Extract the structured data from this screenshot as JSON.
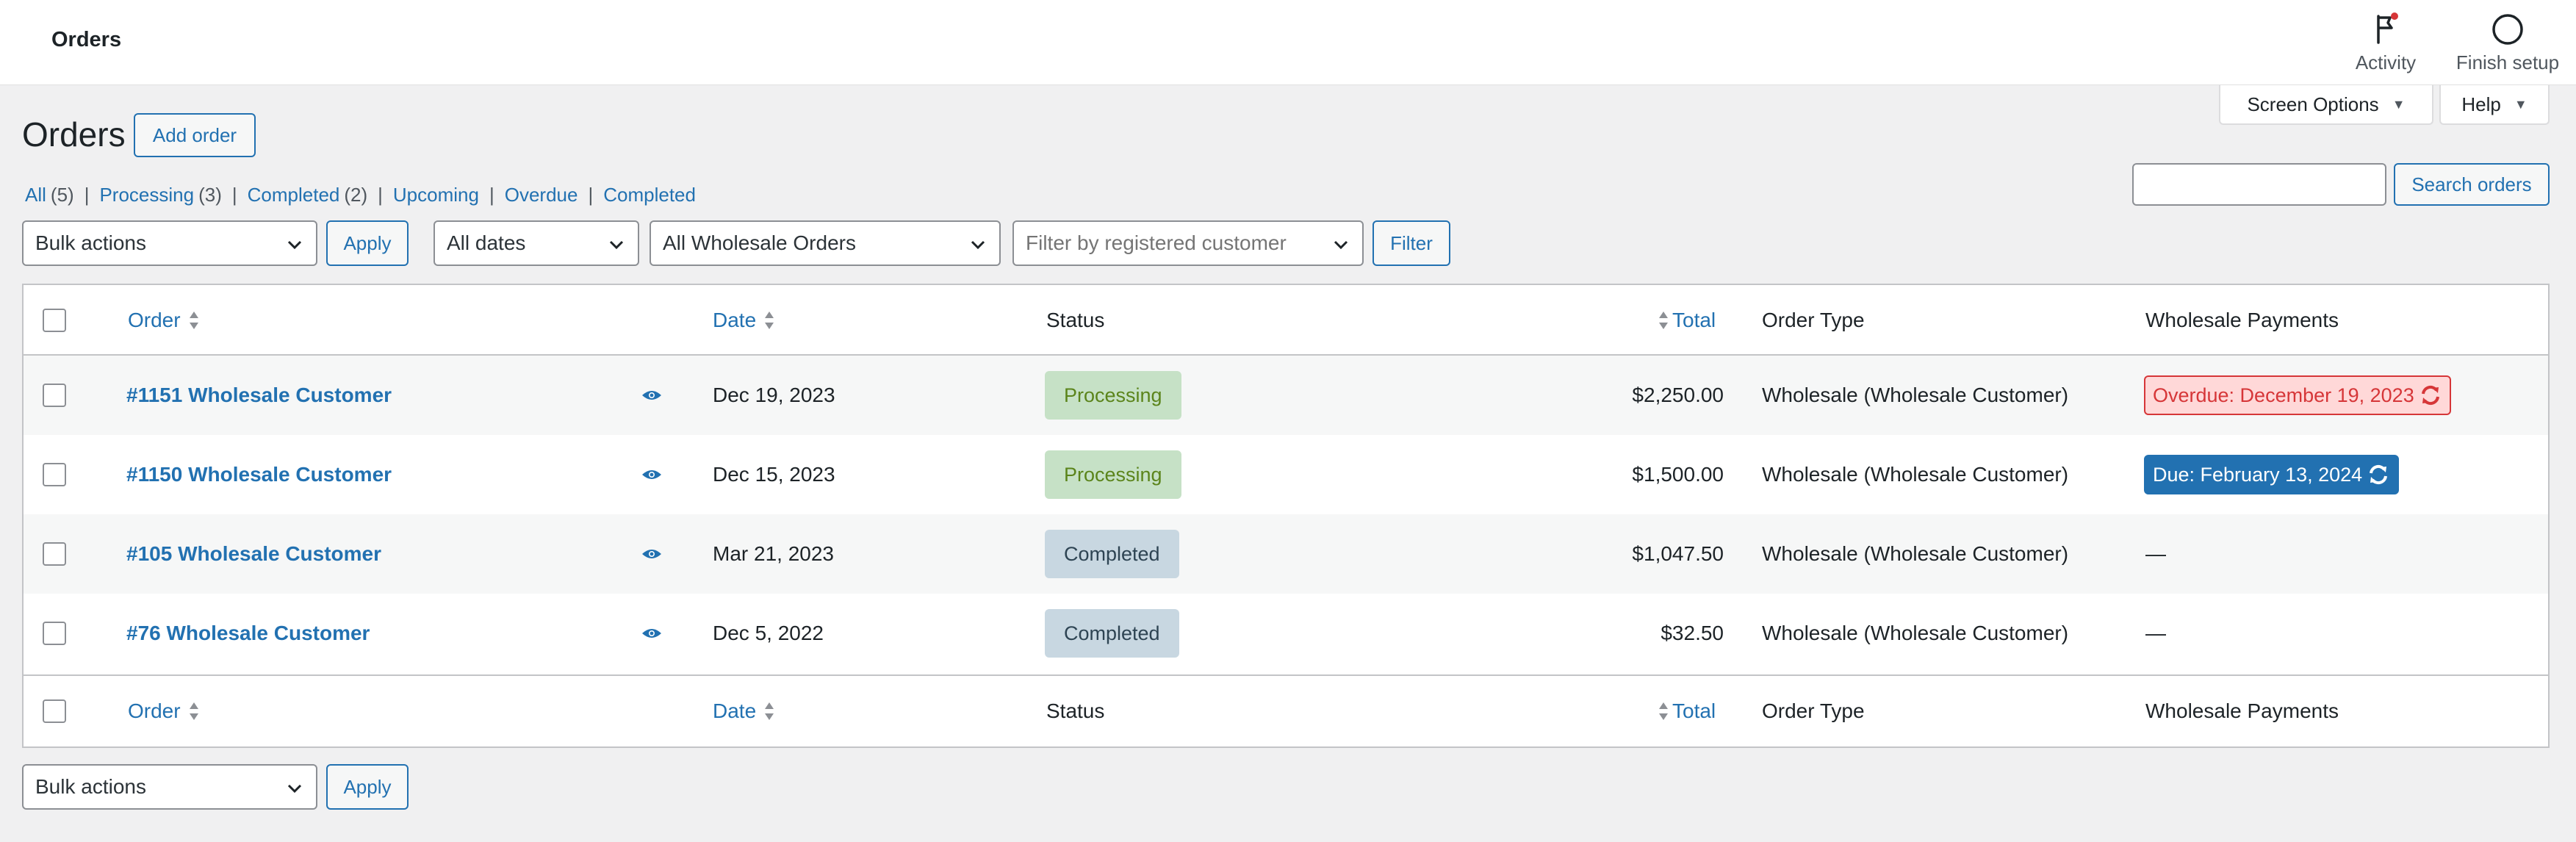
{
  "topbar": {
    "title": "Orders",
    "activity_label": "Activity",
    "finish_setup_label": "Finish setup"
  },
  "screen_meta": {
    "screen_options": "Screen Options",
    "help": "Help"
  },
  "heading": {
    "title": "Orders",
    "add_order": "Add order"
  },
  "views": [
    {
      "label": "All",
      "count": "(5)"
    },
    {
      "label": "Processing",
      "count": "(3)"
    },
    {
      "label": "Completed",
      "count": "(2)"
    },
    {
      "label": "Upcoming",
      "count": ""
    },
    {
      "label": "Overdue",
      "count": ""
    },
    {
      "label": "Completed",
      "count": ""
    }
  ],
  "search": {
    "value": "",
    "button": "Search orders"
  },
  "filters": {
    "bulk_actions": "Bulk actions",
    "apply": "Apply",
    "dates": "All dates",
    "wholesale": "All Wholesale Orders",
    "customer_placeholder": "Filter by registered customer",
    "filter": "Filter"
  },
  "columns": {
    "order": "Order",
    "date": "Date",
    "status": "Status",
    "total": "Total",
    "order_type": "Order Type",
    "wholesale_payments": "Wholesale Payments"
  },
  "rows": [
    {
      "order": "#1151 Wholesale Customer",
      "date": "Dec 19, 2023",
      "status": "Processing",
      "total": "$2,250.00",
      "type": "Wholesale (Wholesale Customer)",
      "payment": "Overdue: December 19, 2023"
    },
    {
      "order": "#1150 Wholesale Customer",
      "date": "Dec 15, 2023",
      "status": "Processing",
      "total": "$1,500.00",
      "type": "Wholesale (Wholesale Customer)",
      "payment": "Due: February 13, 2024"
    },
    {
      "order": "#105 Wholesale Customer",
      "date": "Mar 21, 2023",
      "status": "Completed",
      "total": "$1,047.50",
      "type": "Wholesale (Wholesale Customer)",
      "payment": "—"
    },
    {
      "order": "#76 Wholesale Customer",
      "date": "Dec 5, 2022",
      "status": "Completed",
      "total": "$32.50",
      "type": "Wholesale (Wholesale Customer)",
      "payment": "—"
    }
  ],
  "bottom": {
    "bulk_actions": "Bulk actions",
    "apply": "Apply"
  },
  "colors": {
    "link": "#2271b1",
    "processing_bg": "#c6e1c6",
    "completed_bg": "#c8d7e1",
    "overdue": "#d63638"
  },
  "icons": [
    "flag-icon",
    "circle-icon",
    "caret-down-icon",
    "chevron-down-icon",
    "sort-icon",
    "eye-icon",
    "sync-icon"
  ]
}
